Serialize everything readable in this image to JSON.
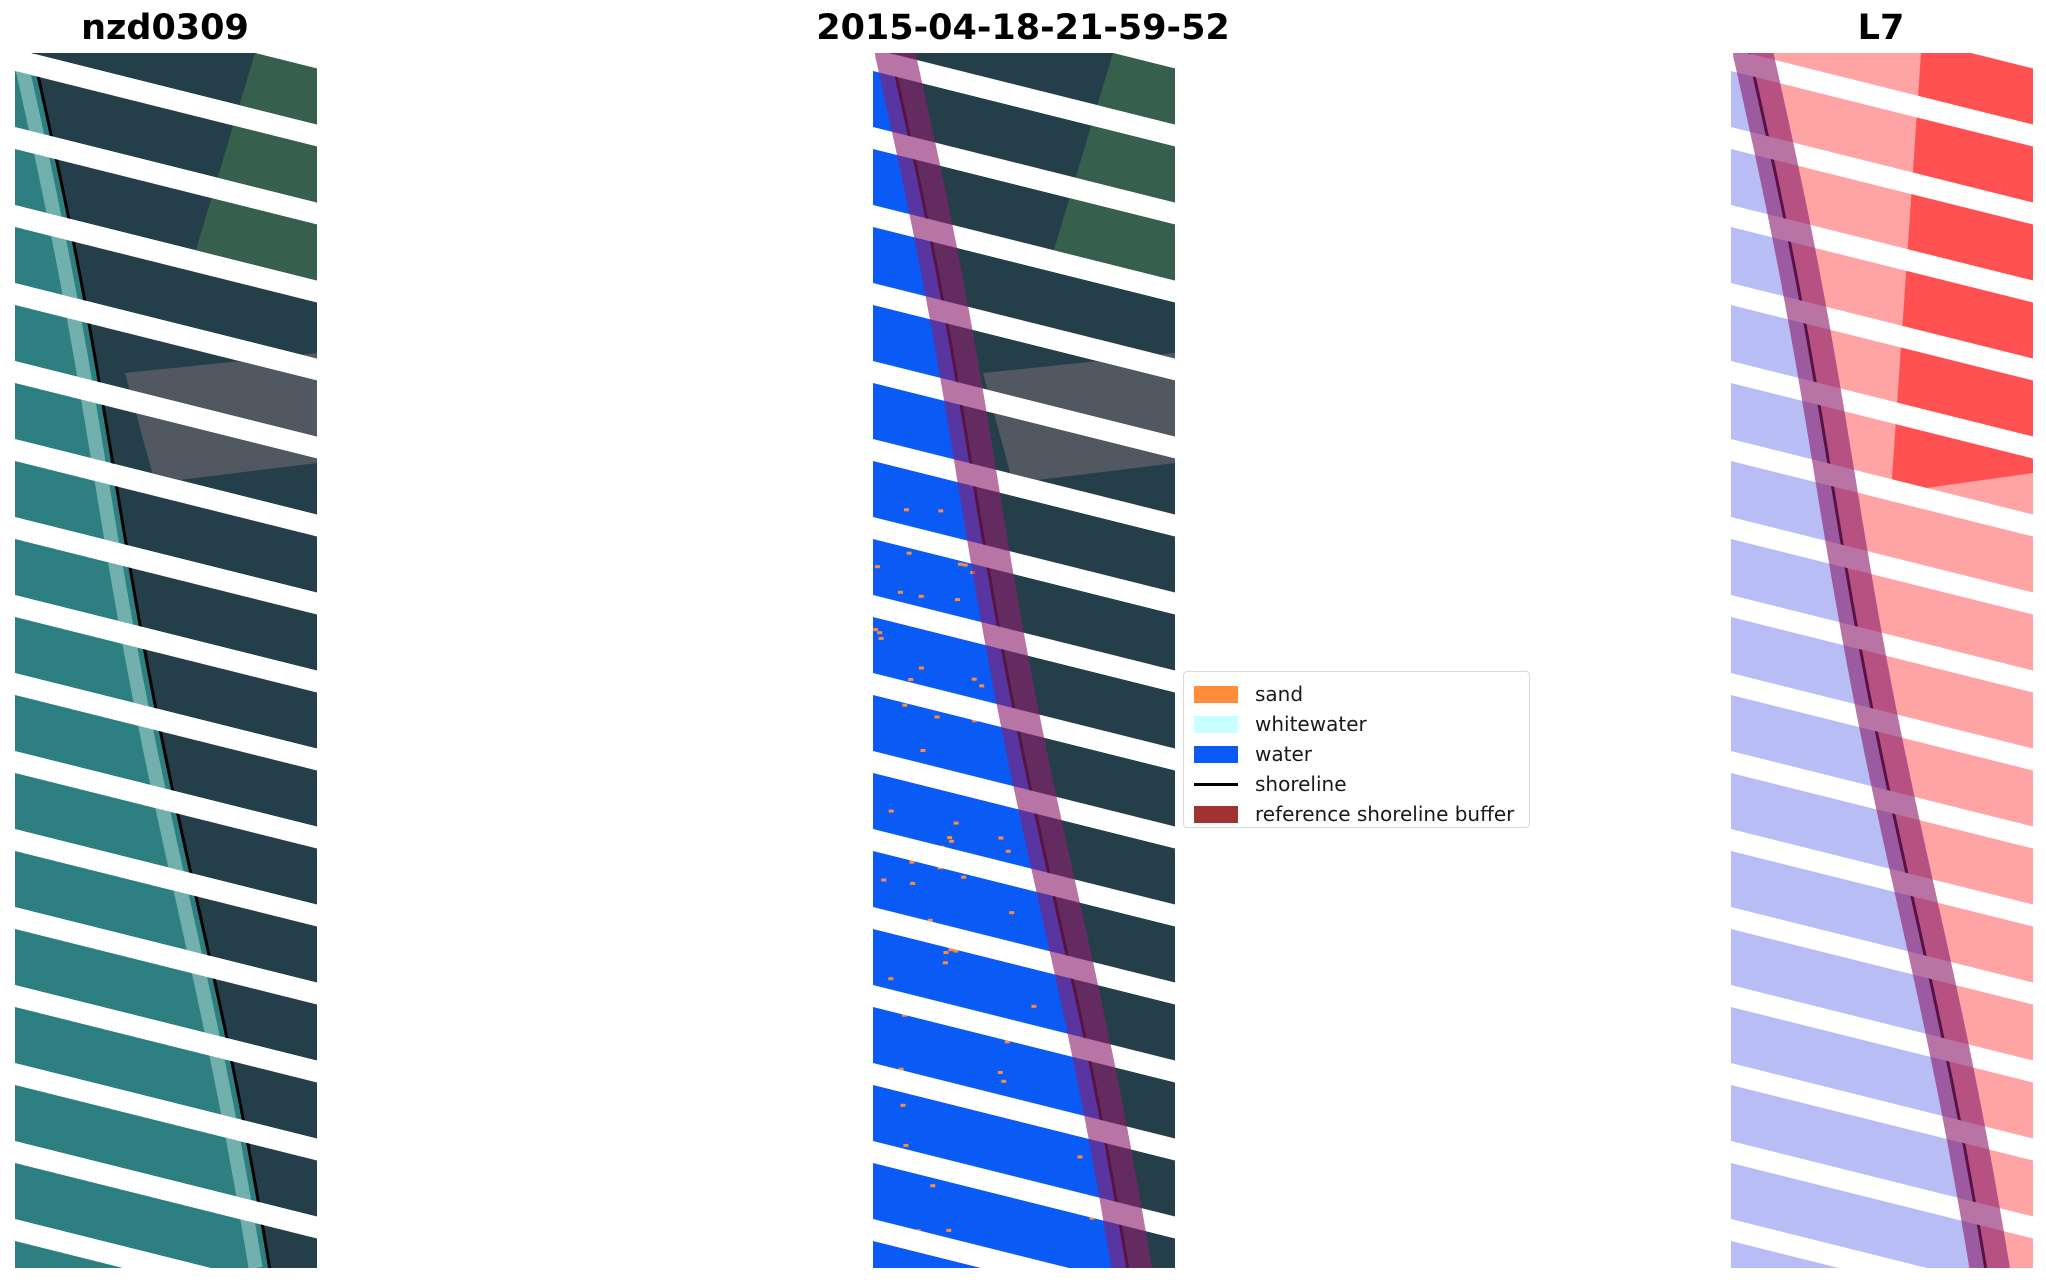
{
  "panels": [
    {
      "title": "nzd0309",
      "kind": "rgb"
    },
    {
      "title": "2015-04-18-21-59-52",
      "kind": "classified"
    },
    {
      "title": "L7",
      "kind": "mndwi"
    }
  ],
  "legend": {
    "items": [
      {
        "label": "sand",
        "color": "#ff8c3a",
        "type": "patch"
      },
      {
        "label": "whitewater",
        "color": "#c8ffff",
        "type": "patch"
      },
      {
        "label": "water",
        "color": "#0a5af5",
        "type": "patch"
      },
      {
        "label": "shoreline",
        "color": "#000000",
        "type": "line"
      },
      {
        "label": "reference shoreline buffer",
        "color": "#a03232",
        "type": "patch"
      }
    ]
  },
  "colors": {
    "sea": "#2e7f82",
    "land": "#243f4a",
    "field": "#3f6d50",
    "water_class": "#0a5af5",
    "sand_class": "#ff8c3a",
    "buffer": "#8b1e6e",
    "index_water": "#b9bdf5",
    "index_land": "#ff5a5a",
    "shoreline": "#000000"
  }
}
